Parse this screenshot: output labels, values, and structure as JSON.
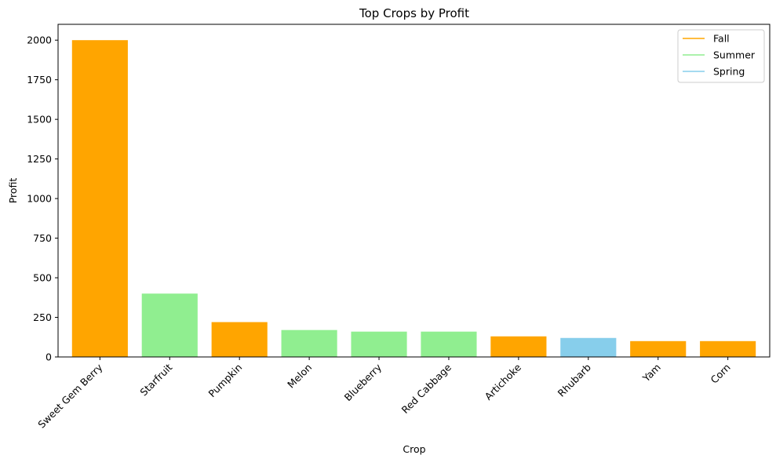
{
  "chart_data": {
    "type": "bar",
    "title": "Top Crops by Profit",
    "xlabel": "Crop",
    "ylabel": "Profit",
    "ylim": [
      0,
      2100
    ],
    "yticks": [
      0,
      250,
      500,
      750,
      1000,
      1250,
      1500,
      1750,
      2000
    ],
    "ytick_labels": [
      "0",
      "250",
      "500",
      "750",
      "1000",
      "1250",
      "1500",
      "1750",
      "2000"
    ],
    "categories": [
      "Sweet Gem Berry",
      "Starfruit",
      "Pumpkin",
      "Melon",
      "Blueberry",
      "Red Cabbage",
      "Artichoke",
      "Rhubarb",
      "Yam",
      "Corn"
    ],
    "values": [
      2000,
      400,
      220,
      170,
      160,
      160,
      130,
      120,
      100,
      100
    ],
    "seasons": [
      "Fall",
      "Summer",
      "Fall",
      "Summer",
      "Summer",
      "Summer",
      "Fall",
      "Spring",
      "Fall",
      "Fall"
    ],
    "legend": [
      {
        "name": "Fall",
        "color": "#ffa500"
      },
      {
        "name": "Summer",
        "color": "#90ee90"
      },
      {
        "name": "Spring",
        "color": "#87ceeb"
      }
    ],
    "legend_position": "top-right",
    "grid": false
  }
}
